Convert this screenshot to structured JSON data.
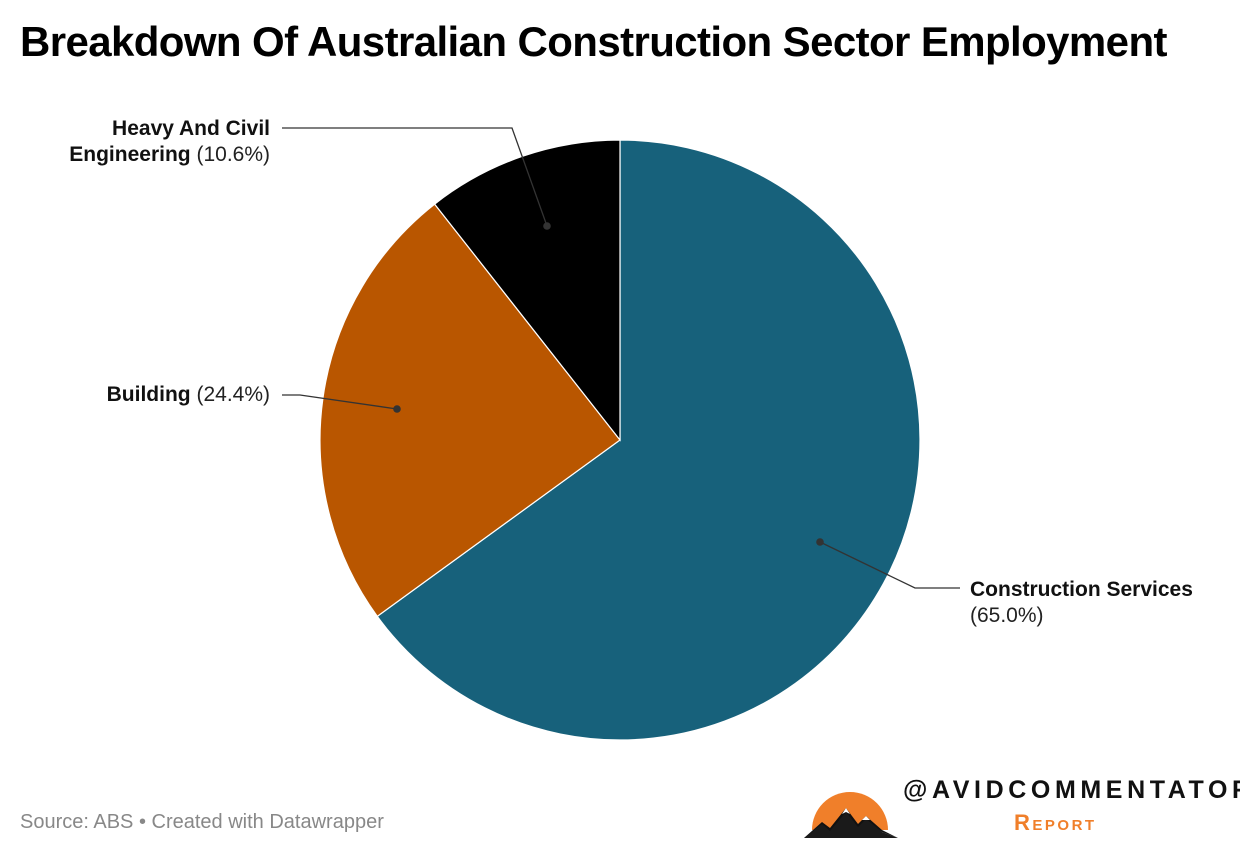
{
  "chart_data": {
    "type": "pie",
    "title": "Breakdown Of Australian Construction Sector Employment",
    "slices": [
      {
        "label": "Construction Services",
        "value": 65.0,
        "display": "(65.0%)",
        "color": "#17617b"
      },
      {
        "label": "Building",
        "value": 24.4,
        "display": "(24.4%)",
        "color": "#b95600"
      },
      {
        "label": "Heavy And Civil Engineering",
        "value": 10.6,
        "display": "(10.6%)",
        "color": "#000000"
      }
    ],
    "labels": {
      "heavy": {
        "name_line1": "Heavy And Civil",
        "name_line2": "Engineering",
        "percent": "(10.6%)"
      },
      "building": {
        "name": "Building",
        "percent": "(24.4%)"
      },
      "services": {
        "name": "Construction Services",
        "percent": "(65.0%)"
      }
    },
    "start_angle_deg": 0,
    "direction": "clockwise"
  },
  "footer": {
    "source": "Source: ABS • Created with Datawrapper"
  },
  "brand": {
    "handle": "@AVIDCOMMENTATOR",
    "subtitle": "Report",
    "accent_color": "#f07f2a",
    "icon": "sunset-mountain-logo"
  }
}
